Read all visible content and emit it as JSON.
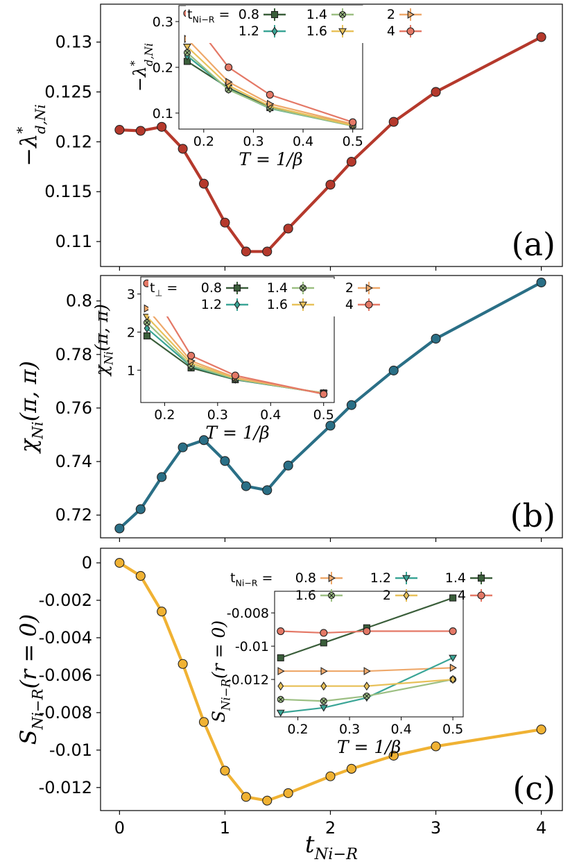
{
  "figure": {
    "shared_xlabel": "t_Ni−R"
  },
  "chart_data": [
    {
      "id": "a",
      "type": "line",
      "panel_label": "(a)",
      "ylabel": "−λ*_d,Ni",
      "xlabel": "",
      "color": "#b5392c",
      "xlim": [
        -0.18,
        4.2
      ],
      "ylim": [
        0.1075,
        0.1338
      ],
      "xticks": [
        0,
        1,
        2,
        3,
        4
      ],
      "show_xtick_labels": false,
      "yticks": [
        0.11,
        0.115,
        0.12,
        0.125,
        0.13
      ],
      "ytick_labels": [
        "0.11",
        "0.115",
        "0.12",
        "0.125",
        "0.13"
      ],
      "x": [
        0,
        0.2,
        0.4,
        0.6,
        0.8,
        1.0,
        1.2,
        1.4,
        1.6,
        2.0,
        2.2,
        2.6,
        3.0,
        4.0
      ],
      "y": [
        0.1212,
        0.1211,
        0.1215,
        0.1193,
        0.1158,
        0.1119,
        0.109,
        0.109,
        0.1113,
        0.1157,
        0.118,
        0.122,
        0.125,
        0.1305
      ],
      "inset": {
        "xlabel": "T = 1/β",
        "ylabel": "−λ*_d,Ni",
        "xlim": [
          0.15,
          0.52
        ],
        "ylim": [
          0.065,
          0.335
        ],
        "xticks": [
          0.2,
          0.3,
          0.4,
          0.5
        ],
        "xtick_labels": [
          "0.2",
          "0.3",
          "0.4",
          "0.5"
        ],
        "yticks": [
          0.1,
          0.2,
          0.3
        ],
        "ytick_labels": [
          "0.1",
          "0.2",
          "0.3"
        ],
        "legend_var": "t_Ni−R",
        "x": [
          0.1667,
          0.25,
          0.3333,
          0.5
        ],
        "series": [
          {
            "name": "0.8",
            "marker": "square",
            "color": "#3a5e3a",
            "values": [
              0.213,
              0.155,
              0.112,
              0.075
            ]
          },
          {
            "name": "1.2",
            "marker": "diamond",
            "color": "#3aa596",
            "values": [
              0.225,
              0.152,
              0.11,
              0.072
            ]
          },
          {
            "name": "1.4",
            "marker": "xcircle",
            "color": "#9cbf82",
            "values": [
              0.232,
              0.151,
              0.111,
              0.072
            ]
          },
          {
            "name": "1.6",
            "marker": "tri_down",
            "color": "#e8c15a",
            "values": [
              0.245,
              0.16,
              0.115,
              0.073
            ]
          },
          {
            "name": "2",
            "marker": "tri_right",
            "color": "#eea86a",
            "values": [
              0.262,
              0.168,
              0.12,
              0.076
            ]
          },
          {
            "name": "4",
            "marker": "circle",
            "color": "#e47866",
            "values": [
              0.318,
              0.2,
              0.14,
              0.08
            ]
          }
        ]
      }
    },
    {
      "id": "b",
      "type": "line",
      "panel_label": "(b)",
      "ylabel": "χ_Ni(π, π)",
      "xlabel": "",
      "color": "#2a6f86",
      "xlim": [
        -0.18,
        4.2
      ],
      "ylim": [
        0.7115,
        0.8095
      ],
      "xticks": [
        0,
        1,
        2,
        3,
        4
      ],
      "show_xtick_labels": false,
      "yticks": [
        0.72,
        0.74,
        0.76,
        0.78,
        0.8
      ],
      "ytick_labels": [
        "0.72",
        "0.74",
        "0.76",
        "0.78",
        "0.8"
      ],
      "x": [
        0,
        0.2,
        0.4,
        0.6,
        0.8,
        1.0,
        1.2,
        1.4,
        1.6,
        2.0,
        2.2,
        2.6,
        3.0,
        4.0
      ],
      "y": [
        0.715,
        0.7222,
        0.7342,
        0.7453,
        0.748,
        0.7402,
        0.7308,
        0.7293,
        0.7385,
        0.7534,
        0.7611,
        0.774,
        0.7859,
        0.8069
      ],
      "inset": {
        "xlabel": "T = 1/β",
        "ylabel": "χ_Ni(π, π)",
        "xlim": [
          0.155,
          0.52
        ],
        "ylim": [
          0.15,
          3.45
        ],
        "xticks": [
          0.2,
          0.3,
          0.4,
          0.5
        ],
        "xtick_labels": [
          "0.2",
          "0.3",
          "0.4",
          "0.5"
        ],
        "yticks": [
          1,
          2,
          3
        ],
        "ytick_labels": [
          "1",
          "2",
          "3"
        ],
        "legend_var": "t_⊥",
        "x": [
          0.1667,
          0.25,
          0.3333,
          0.5
        ],
        "series": [
          {
            "name": "0.8",
            "marker": "square",
            "color": "#3a5e3a",
            "values": [
              1.9,
              1.06,
              0.75,
              0.4
            ]
          },
          {
            "name": "1.2",
            "marker": "diamond",
            "color": "#3aa596",
            "values": [
              2.1,
              1.1,
              0.76,
              0.39
            ]
          },
          {
            "name": "1.4",
            "marker": "xcircle",
            "color": "#9cbf82",
            "values": [
              2.25,
              1.12,
              0.77,
              0.39
            ]
          },
          {
            "name": "1.6",
            "marker": "tri_down",
            "color": "#e8c15a",
            "values": [
              2.4,
              1.18,
              0.79,
              0.39
            ]
          },
          {
            "name": "2",
            "marker": "tri_right",
            "color": "#eea86a",
            "values": [
              2.62,
              1.24,
              0.81,
              0.38
            ]
          },
          {
            "name": "4",
            "marker": "circle",
            "color": "#e47866",
            "values": [
              3.28,
              1.38,
              0.86,
              0.37
            ]
          }
        ]
      }
    },
    {
      "id": "c",
      "type": "line",
      "panel_label": "(c)",
      "ylabel": "S_Ni−R(r = 0)",
      "xlabel": "t_Ni−R",
      "color": "#f0b233",
      "xlim": [
        -0.18,
        4.2
      ],
      "ylim": [
        -0.01323,
        0.00078
      ],
      "xticks": [
        0,
        1,
        2,
        3,
        4
      ],
      "xtick_labels": [
        "0",
        "1",
        "2",
        "3",
        "4"
      ],
      "show_xtick_labels": true,
      "yticks": [
        0,
        -0.002,
        -0.004,
        -0.006,
        -0.008,
        -0.01,
        -0.012
      ],
      "ytick_labels": [
        "0",
        "-0.002",
        "-0.004",
        "-0.006",
        "-0.008",
        "-0.01",
        "-0.012"
      ],
      "x": [
        0,
        0.2,
        0.4,
        0.6,
        0.8,
        1.0,
        1.2,
        1.4,
        1.6,
        2.0,
        2.2,
        2.6,
        3.0,
        4.0
      ],
      "y": [
        0.0,
        -0.0007,
        -0.0026,
        -0.0054,
        -0.0085,
        -0.0111,
        -0.0125,
        -0.0127,
        -0.0123,
        -0.0114,
        -0.011,
        -0.0103,
        -0.0098,
        -0.0089
      ],
      "inset": {
        "xlabel": "T = 1/β",
        "ylabel": "S_Ni−R(r = 0)",
        "xlim": [
          0.155,
          0.52
        ],
        "ylim": [
          -0.01425,
          -0.0067
        ],
        "xticks": [
          0.2,
          0.3,
          0.4,
          0.5
        ],
        "xtick_labels": [
          "0.2",
          "0.3",
          "0.4",
          "0.5"
        ],
        "yticks": [
          -0.008,
          -0.01,
          -0.012
        ],
        "ytick_labels": [
          "-0.008",
          "-0.01",
          "-0.012"
        ],
        "legend_var": "t_Ni−R",
        "x": [
          0.1667,
          0.25,
          0.3333,
          0.5
        ],
        "series": [
          {
            "name": "0.8",
            "marker": "tri_right",
            "color": "#eea86a",
            "values": [
              -0.0115,
              -0.0115,
              -0.0115,
              -0.0113
            ]
          },
          {
            "name": "1.2",
            "marker": "tri_down",
            "color": "#3aa596",
            "values": [
              -0.014,
              -0.0137,
              -0.0131,
              -0.0107
            ]
          },
          {
            "name": "1.4",
            "marker": "square",
            "color": "#3a5e3a",
            "values": [
              -0.0107,
              -0.0098,
              -0.0089,
              -0.0071
            ]
          },
          {
            "name": "1.6",
            "marker": "xcircle",
            "color": "#9cbf82",
            "values": [
              -0.0132,
              -0.0133,
              -0.013,
              -0.012
            ]
          },
          {
            "name": "2",
            "marker": "diamond",
            "color": "#e8c15a",
            "values": [
              -0.0124,
              -0.0124,
              -0.0124,
              -0.012
            ]
          },
          {
            "name": "4",
            "marker": "circle",
            "color": "#e47866",
            "values": [
              -0.0091,
              -0.0092,
              -0.0091,
              -0.0091
            ]
          }
        ]
      }
    }
  ]
}
